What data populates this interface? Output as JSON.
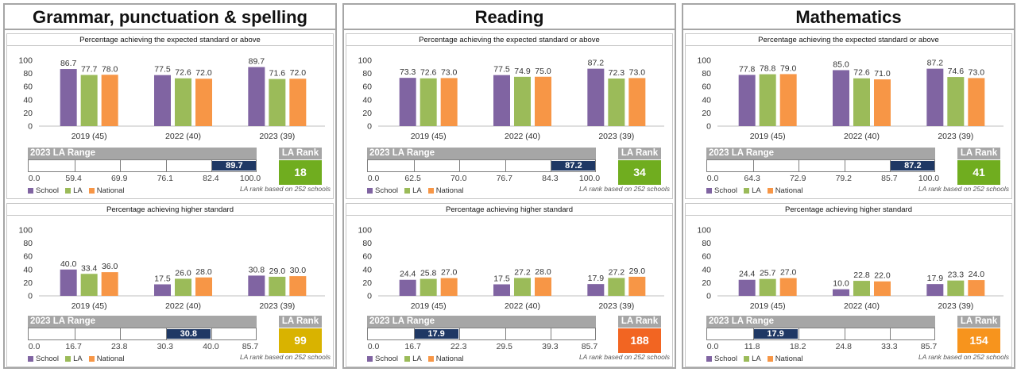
{
  "colors": {
    "school": "#8064a2",
    "la": "#9bbb59",
    "national": "#f79646",
    "marker": "#1f3864"
  },
  "legend": {
    "school": "School",
    "la": "LA",
    "national": "National"
  },
  "note": "LA rank based on 252 schools",
  "labels": {
    "expected": "Percentage achieving the expected standard or above",
    "higher": "Percentage achieving higher standard",
    "range_title": "2023 LA Range",
    "rank_title": "LA Rank"
  },
  "categories": [
    "2019 (45)",
    "2022 (40)",
    "2023 (39)"
  ],
  "subjects": [
    {
      "title": "Grammar, punctuation & spelling",
      "expected": {
        "chart_data": {
          "type": "bar",
          "categories": [
            "2019 (45)",
            "2022 (40)",
            "2023 (39)"
          ],
          "ylim": [
            0,
            100
          ],
          "series": [
            {
              "name": "School",
              "values": [
                86.7,
                77.5,
                89.7
              ]
            },
            {
              "name": "LA",
              "values": [
                77.7,
                72.6,
                71.6
              ]
            },
            {
              "name": "National",
              "values": [
                78.0,
                72.0,
                72.0
              ]
            }
          ]
        },
        "range": {
          "ticks": [
            "0.0",
            "59.4",
            "69.9",
            "76.1",
            "82.4",
            "100.0"
          ],
          "marker": "89.7",
          "marker_segment": 4
        },
        "rank": "18",
        "rank_color": "#70ad1f"
      },
      "higher": {
        "chart_data": {
          "type": "bar",
          "categories": [
            "2019 (45)",
            "2022 (40)",
            "2023 (39)"
          ],
          "ylim": [
            0,
            100
          ],
          "series": [
            {
              "name": "School",
              "values": [
                40.0,
                17.5,
                30.8
              ]
            },
            {
              "name": "LA",
              "values": [
                33.4,
                26.0,
                29.0
              ]
            },
            {
              "name": "National",
              "values": [
                36.0,
                28.0,
                30.0
              ]
            }
          ]
        },
        "range": {
          "ticks": [
            "0.0",
            "16.7",
            "23.8",
            "30.3",
            "40.0",
            "85.7"
          ],
          "marker": "30.8",
          "marker_segment": 3
        },
        "rank": "99",
        "rank_color": "#d9b300"
      }
    },
    {
      "title": "Reading",
      "expected": {
        "chart_data": {
          "type": "bar",
          "categories": [
            "2019 (45)",
            "2022 (40)",
            "2023 (39)"
          ],
          "ylim": [
            0,
            100
          ],
          "series": [
            {
              "name": "School",
              "values": [
                73.3,
                77.5,
                87.2
              ]
            },
            {
              "name": "LA",
              "values": [
                72.6,
                74.9,
                72.3
              ]
            },
            {
              "name": "National",
              "values": [
                73.0,
                75.0,
                73.0
              ]
            }
          ]
        },
        "range": {
          "ticks": [
            "0.0",
            "62.5",
            "70.0",
            "76.7",
            "84.3",
            "100.0"
          ],
          "marker": "87.2",
          "marker_segment": 4
        },
        "rank": "34",
        "rank_color": "#70ad1f"
      },
      "higher": {
        "chart_data": {
          "type": "bar",
          "categories": [
            "2019 (45)",
            "2022 (40)",
            "2023 (39)"
          ],
          "ylim": [
            0,
            100
          ],
          "series": [
            {
              "name": "School",
              "values": [
                24.4,
                17.5,
                17.9
              ]
            },
            {
              "name": "LA",
              "values": [
                25.8,
                27.2,
                27.2
              ]
            },
            {
              "name": "National",
              "values": [
                27.0,
                28.0,
                29.0
              ]
            }
          ]
        },
        "range": {
          "ticks": [
            "0.0",
            "16.7",
            "22.3",
            "29.5",
            "39.3",
            "85.7"
          ],
          "marker": "17.9",
          "marker_segment": 1
        },
        "rank": "188",
        "rank_color": "#f26522"
      }
    },
    {
      "title": "Mathematics",
      "expected": {
        "chart_data": {
          "type": "bar",
          "categories": [
            "2019 (45)",
            "2022 (40)",
            "2023 (39)"
          ],
          "ylim": [
            0,
            100
          ],
          "series": [
            {
              "name": "School",
              "values": [
                77.8,
                85.0,
                87.2
              ]
            },
            {
              "name": "LA",
              "values": [
                78.8,
                72.6,
                74.6
              ]
            },
            {
              "name": "National",
              "values": [
                79.0,
                71.0,
                73.0
              ]
            }
          ]
        },
        "range": {
          "ticks": [
            "0.0",
            "64.3",
            "72.9",
            "79.2",
            "85.7",
            "100.0"
          ],
          "marker": "87.2",
          "marker_segment": 4
        },
        "rank": "41",
        "rank_color": "#70ad1f"
      },
      "higher": {
        "chart_data": {
          "type": "bar",
          "categories": [
            "2019 (45)",
            "2022 (40)",
            "2023 (39)"
          ],
          "ylim": [
            0,
            100
          ],
          "series": [
            {
              "name": "School",
              "values": [
                24.4,
                10.0,
                17.9
              ]
            },
            {
              "name": "LA",
              "values": [
                25.7,
                22.8,
                23.3
              ]
            },
            {
              "name": "National",
              "values": [
                27.0,
                22.0,
                24.0
              ]
            }
          ]
        },
        "range": {
          "ticks": [
            "0.0",
            "11.8",
            "18.2",
            "24.8",
            "33.3",
            "85.7"
          ],
          "marker": "17.9",
          "marker_segment": 1
        },
        "rank": "154",
        "rank_color": "#f7941d"
      }
    }
  ]
}
